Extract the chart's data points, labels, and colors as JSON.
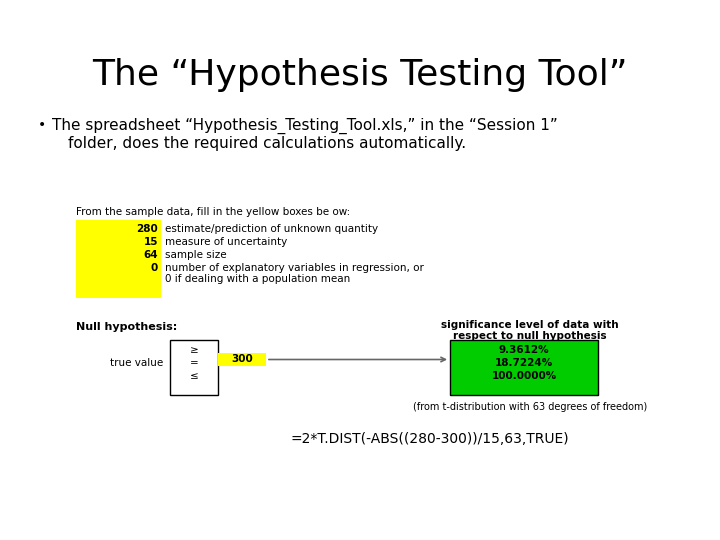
{
  "title": "The “Hypothesis Testing Tool”",
  "bullet_text_line1": "The spreadsheet “Hypothesis_Testing_Tool.xls,” in the “Session 1”",
  "bullet_text_line2": "folder, does the required calculations automatically.",
  "spreadsheet_label": "From the sample data, fill in the yellow boxes be ow:",
  "yellow_values": [
    "280",
    "15",
    "64",
    "0"
  ],
  "yellow_labels": [
    "estimate/prediction of unknown quantity",
    "measure of uncertainty",
    "sample size",
    "number of explanatory variables in regression, or",
    "0 if dealing with a population mean"
  ],
  "null_hypothesis_label": "Null hypothesis:",
  "true_value_label": "true value",
  "box_symbols": [
    "≥",
    "=",
    "≤"
  ],
  "yellow_value_300": "300",
  "significance_label_line1": "significance level of data with",
  "significance_label_line2": "respect to null hypothesis",
  "green_values": [
    "9.3612%",
    "18.7224%",
    "100.0000%"
  ],
  "footnote": "(from t-distribution with 63 degrees of freedom)",
  "formula": "=2*T.DIST(-ABS((280-300))/15,63,TRUE)",
  "bg_color": "#ffffff",
  "yellow_color": "#ffff00",
  "green_color": "#00cc00",
  "title_fontsize": 26,
  "body_fontsize": 11,
  "small_fontsize": 7.5,
  "tiny_fontsize": 7
}
